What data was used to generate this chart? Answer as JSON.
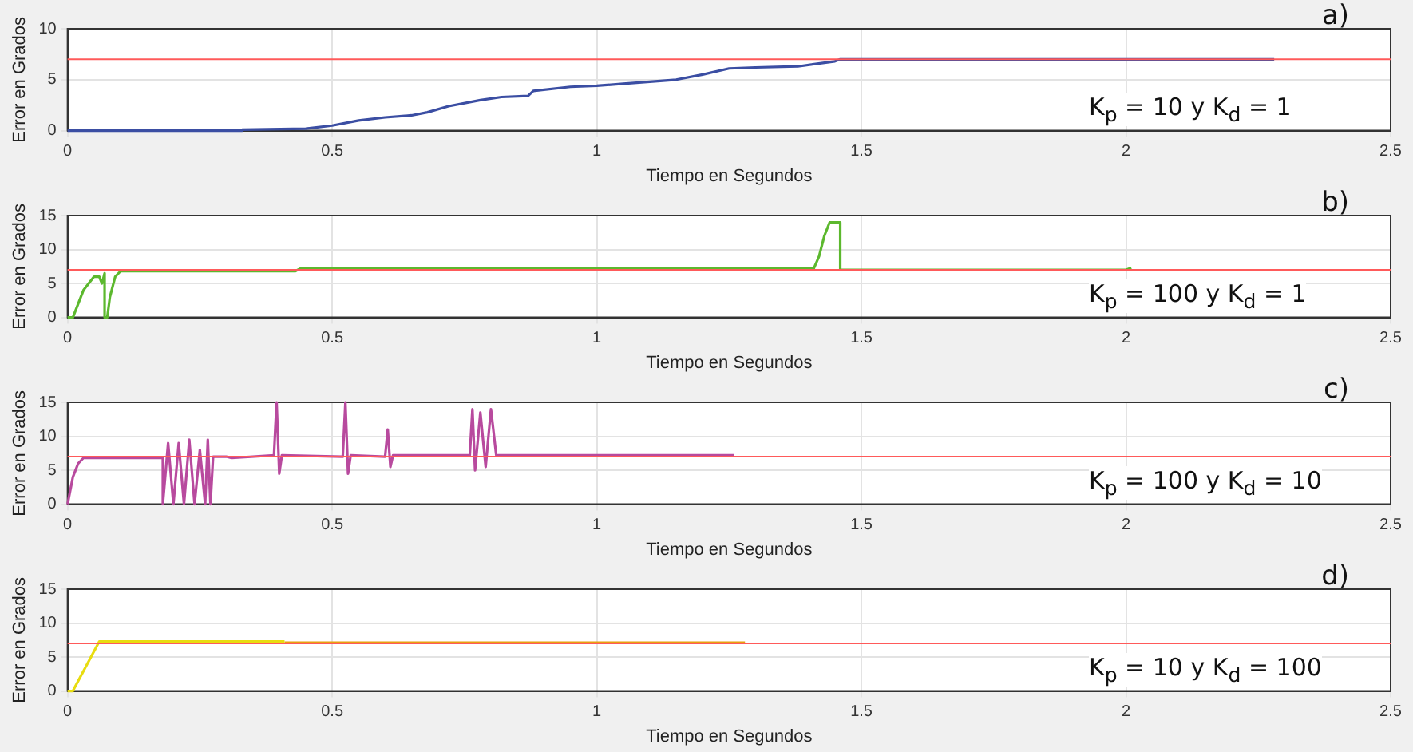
{
  "chart_data": [
    {
      "type": "line",
      "xlabel": "Tiempo en Segundos",
      "ylabel": "Error en Grados",
      "xlim": [
        0,
        2.5
      ],
      "xticks": [
        0,
        0.5,
        1,
        1.5,
        2,
        2.5
      ],
      "ylim": [
        0,
        10
      ],
      "yticks": [
        0,
        5,
        10
      ],
      "grid": true,
      "legend": false,
      "annotations": [
        "a)",
        "K$_{p}$ = 10 y K$_{d}$ = 1"
      ],
      "ref_lines": [
        {
          "axis": "y",
          "value": 7,
          "color": "#ff5a5a"
        }
      ],
      "series": [
        {
          "color": "#3b4ea3",
          "x": [
            0,
            0.33,
            0.33,
            0.45,
            0.5,
            0.55,
            0.6,
            0.65,
            0.68,
            0.72,
            0.78,
            0.82,
            0.87,
            0.88,
            0.95,
            1.0,
            1.05,
            1.1,
            1.15,
            1.2,
            1.25,
            1.3,
            1.38,
            1.45,
            1.46,
            2.28
          ],
          "values": [
            0,
            0,
            0.1,
            0.2,
            0.5,
            1.0,
            1.3,
            1.5,
            1.8,
            2.4,
            3.0,
            3.3,
            3.4,
            3.9,
            4.3,
            4.4,
            4.6,
            4.8,
            5.0,
            5.5,
            6.1,
            6.2,
            6.3,
            6.8,
            7,
            7
          ]
        }
      ]
    },
    {
      "type": "line",
      "xlabel": "Tiempo en Segundos",
      "ylabel": "Error en Grados",
      "xlim": [
        0,
        2.5
      ],
      "xticks": [
        0,
        0.5,
        1,
        1.5,
        2,
        2.5
      ],
      "ylim": [
        0,
        15
      ],
      "yticks": [
        0,
        5,
        10,
        15
      ],
      "grid": true,
      "legend": false,
      "annotations": [
        "b)",
        "K$_{p}$ = 100 y K$_{d}$ = 1"
      ],
      "ref_lines": [
        {
          "axis": "y",
          "value": 7,
          "color": "#ff5a5a"
        }
      ],
      "series": [
        {
          "color": "#5cb82e",
          "x": [
            0,
            0.01,
            0.02,
            0.03,
            0.05,
            0.06,
            0.065,
            0.07,
            0.07,
            0.075,
            0.08,
            0.09,
            0.1,
            0.43,
            0.44,
            1.41,
            1.42,
            1.43,
            1.44,
            1.46,
            1.46,
            2.0,
            2.01
          ],
          "values": [
            0,
            0,
            2,
            4,
            6,
            6,
            5,
            6.5,
            0,
            0,
            3,
            6,
            6.8,
            6.8,
            7.2,
            7.2,
            9,
            12,
            14,
            14,
            7,
            7,
            7.3
          ]
        }
      ]
    },
    {
      "type": "line",
      "xlabel": "Tiempo en Segundos",
      "ylabel": "Error en Grados",
      "xlim": [
        0,
        2.5
      ],
      "xticks": [
        0,
        0.5,
        1,
        1.5,
        2,
        2.5
      ],
      "ylim": [
        0,
        15
      ],
      "yticks": [
        0,
        5,
        10,
        15
      ],
      "grid": true,
      "legend": false,
      "annotations": [
        "c)",
        "K$_{p}$ = 100 y K$_{d}$ = 10"
      ],
      "ref_lines": [
        {
          "axis": "y",
          "value": 7,
          "color": "#ff5a5a"
        }
      ],
      "series": [
        {
          "color": "#b84a9e",
          "x": [
            0,
            0.01,
            0.02,
            0.03,
            0.18,
            0.18,
            0.19,
            0.2,
            0.21,
            0.22,
            0.23,
            0.24,
            0.25,
            0.26,
            0.265,
            0.27,
            0.275,
            0.3,
            0.31,
            0.39,
            0.395,
            0.4,
            0.405,
            0.52,
            0.525,
            0.53,
            0.535,
            0.6,
            0.605,
            0.61,
            0.615,
            0.76,
            0.765,
            0.77,
            0.78,
            0.79,
            0.8,
            0.81,
            1.26
          ],
          "values": [
            0,
            4,
            6,
            6.8,
            6.8,
            0,
            9,
            0,
            9,
            0,
            9.5,
            0,
            8,
            0,
            9.5,
            0,
            7,
            7,
            6.8,
            7.2,
            15,
            4.5,
            7.2,
            7,
            15,
            4.5,
            7.2,
            7,
            11,
            5.5,
            7.2,
            7.2,
            14,
            5,
            13.5,
            5.5,
            14,
            7.2,
            7.2
          ]
        }
      ]
    },
    {
      "type": "line",
      "xlabel": "Tiempo en Segundos",
      "ylabel": "Error en Grados",
      "xlim": [
        0,
        2.5
      ],
      "xticks": [
        0,
        0.5,
        1,
        1.5,
        2,
        2.5
      ],
      "ylim": [
        0,
        15
      ],
      "yticks": [
        0,
        5,
        10,
        15
      ],
      "grid": true,
      "legend": false,
      "annotations": [
        "d)",
        "K$_{p}$ = 10 y K$_{d}$ = 100"
      ],
      "ref_lines": [
        {
          "axis": "y",
          "value": 7,
          "color": "#ff5a5a"
        }
      ],
      "series": [
        {
          "color": "#e8dc10",
          "x": [
            0,
            0.01,
            0.06,
            0.41
          ],
          "values": [
            0,
            0,
            7.3,
            7.3
          ]
        },
        {
          "color": "#e8a010",
          "x": [
            0.41,
            1.28
          ],
          "values": [
            7.1,
            7.1
          ]
        }
      ]
    }
  ]
}
